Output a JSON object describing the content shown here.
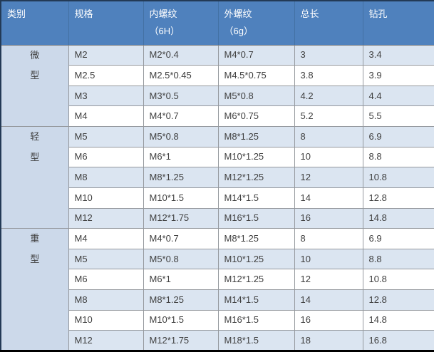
{
  "table": {
    "columns": [
      {
        "label": "类别",
        "sub": ""
      },
      {
        "label": "规格",
        "sub": ""
      },
      {
        "label": "内螺纹",
        "sub": "（6H）"
      },
      {
        "label": "外螺纹",
        "sub": "（6g）"
      },
      {
        "label": "总长",
        "sub": ""
      },
      {
        "label": "钻孔",
        "sub": ""
      }
    ],
    "groups": [
      {
        "category": "微型",
        "rows": [
          {
            "spec": "M2",
            "internal_thread": "M2*0.4",
            "external_thread": "M4*0.7",
            "total_length": "3",
            "drill": "3.4"
          },
          {
            "spec": "M2.5",
            "internal_thread": "M2.5*0.45",
            "external_thread": "M4.5*0.75",
            "total_length": "3.8",
            "drill": "3.9"
          },
          {
            "spec": "M3",
            "internal_thread": "M3*0.5",
            "external_thread": "M5*0.8",
            "total_length": "4.2",
            "drill": "4.4"
          },
          {
            "spec": "M4",
            "internal_thread": "M4*0.7",
            "external_thread": "M6*0.75",
            "total_length": "5.2",
            "drill": "5.5"
          }
        ]
      },
      {
        "category": "轻型",
        "rows": [
          {
            "spec": "M5",
            "internal_thread": "M5*0.8",
            "external_thread": "M8*1.25",
            "total_length": "8",
            "drill": "6.9"
          },
          {
            "spec": "M6",
            "internal_thread": "M6*1",
            "external_thread": "M10*1.25",
            "total_length": "10",
            "drill": "8.8"
          },
          {
            "spec": "M8",
            "internal_thread": "M8*1.25",
            "external_thread": "M12*1.25",
            "total_length": "12",
            "drill": "10.8"
          },
          {
            "spec": "M10",
            "internal_thread": "M10*1.5",
            "external_thread": "M14*1.5",
            "total_length": "14",
            "drill": "12.8"
          },
          {
            "spec": "M12",
            "internal_thread": "M12*1.75",
            "external_thread": "M16*1.5",
            "total_length": "16",
            "drill": "14.8"
          }
        ]
      },
      {
        "category": "重型",
        "rows": [
          {
            "spec": "M4",
            "internal_thread": "M4*0.7",
            "external_thread": "M8*1.25",
            "total_length": "8",
            "drill": "6.9"
          },
          {
            "spec": "M5",
            "internal_thread": "M5*0.8",
            "external_thread": "M10*1.25",
            "total_length": "10",
            "drill": "8.8"
          },
          {
            "spec": "M6",
            "internal_thread": "M6*1",
            "external_thread": "M12*1.25",
            "total_length": "12",
            "drill": "10.8"
          },
          {
            "spec": "M8",
            "internal_thread": "M8*1.25",
            "external_thread": "M14*1.5",
            "total_length": "14",
            "drill": "12.8"
          },
          {
            "spec": "M10",
            "internal_thread": "M10*1.5",
            "external_thread": "M16*1.5",
            "total_length": "16",
            "drill": "14.8"
          },
          {
            "spec": "M12",
            "internal_thread": "M12*1.75",
            "external_thread": "M18*1.5",
            "total_length": "18",
            "drill": "16.8"
          }
        ]
      }
    ]
  },
  "colors": {
    "header_background": "#4f81bd",
    "header_text": "#ffffff",
    "row_stripe_light": "#dbe5f1",
    "row_stripe_white": "#ffffff",
    "category_background": "#ccd9ea",
    "grid_line": "#95999e",
    "outer_border": "#233a56",
    "bottom_border": "#000000",
    "body_text": "#3f3f3f"
  }
}
